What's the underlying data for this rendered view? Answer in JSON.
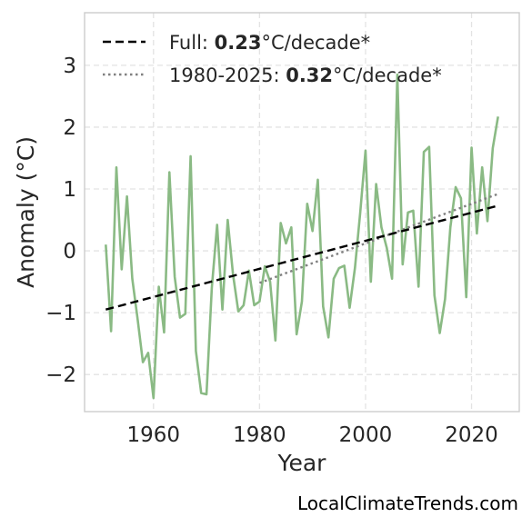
{
  "chart_data": {
    "type": "line",
    "xlabel": "Year",
    "ylabel": "Anomaly (°C)",
    "xlim": [
      1947,
      2029
    ],
    "ylim": [
      -2.6,
      3.85
    ],
    "xticks": [
      1960,
      1980,
      2000,
      2020
    ],
    "yticks": [
      -2,
      -1,
      0,
      1,
      2,
      3
    ],
    "ytick_labels": [
      "−2",
      "−1",
      "0",
      "1",
      "2",
      "3"
    ],
    "grid": true,
    "legend_position": "top-left",
    "series": [
      {
        "style": "solid",
        "color": "#8aba84",
        "x": [
          1951,
          1952,
          1953,
          1954,
          1955,
          1956,
          1957,
          1958,
          1959,
          1960,
          1961,
          1962,
          1963,
          1964,
          1965,
          1966,
          1967,
          1968,
          1969,
          1970,
          1971,
          1972,
          1973,
          1974,
          1975,
          1976,
          1977,
          1978,
          1979,
          1980,
          1981,
          1982,
          1983,
          1984,
          1985,
          1986,
          1987,
          1988,
          1989,
          1990,
          1991,
          1992,
          1993,
          1994,
          1995,
          1996,
          1997,
          1998,
          1999,
          2000,
          2001,
          2002,
          2003,
          2004,
          2005,
          2006,
          2007,
          2008,
          2009,
          2010,
          2011,
          2012,
          2013,
          2014,
          2015,
          2016,
          2017,
          2018,
          2019,
          2020,
          2021,
          2022,
          2023,
          2024,
          2025
        ],
        "y": [
          0.1,
          -1.3,
          1.35,
          -0.3,
          0.88,
          -0.45,
          -1.1,
          -1.8,
          -1.65,
          -2.38,
          -0.58,
          -1.32,
          1.27,
          -0.42,
          -1.08,
          -1.02,
          1.53,
          -1.62,
          -2.3,
          -2.32,
          -0.6,
          0.42,
          -0.95,
          0.5,
          -0.38,
          -0.98,
          -0.88,
          -0.32,
          -0.88,
          -0.82,
          -0.25,
          -0.5,
          -1.45,
          0.45,
          0.12,
          0.38,
          -1.35,
          -0.82,
          0.76,
          0.32,
          1.15,
          -0.9,
          -1.4,
          -0.45,
          -0.28,
          -0.24,
          -0.92,
          -0.28,
          0.62,
          1.62,
          -0.5,
          1.08,
          0.38,
          0.05,
          -0.45,
          2.85,
          -0.22,
          0.62,
          0.65,
          -0.58,
          1.6,
          1.68,
          -0.72,
          -1.33,
          -0.78,
          0.38,
          1.03,
          0.85,
          -0.75,
          1.67,
          0.28,
          1.35,
          0.48,
          1.66,
          2.17
        ]
      },
      {
        "style": "dashed",
        "color": "#000000",
        "x": [
          1951,
          2025
        ],
        "y": [
          -0.95,
          0.73
        ]
      },
      {
        "style": "dotted",
        "color": "#808080",
        "x": [
          1980,
          2025
        ],
        "y": [
          -0.52,
          0.92
        ]
      }
    ],
    "legend": [
      {
        "style": "dashed",
        "color": "#000000",
        "prefix": "Full: ",
        "bold": "0.23",
        "suffix": "°C/decade*"
      },
      {
        "style": "dotted",
        "color": "#808080",
        "prefix": "1980-2025: ",
        "bold": "0.32",
        "suffix": "°C/decade*"
      }
    ],
    "source": "LocalClimateTrends.com"
  }
}
